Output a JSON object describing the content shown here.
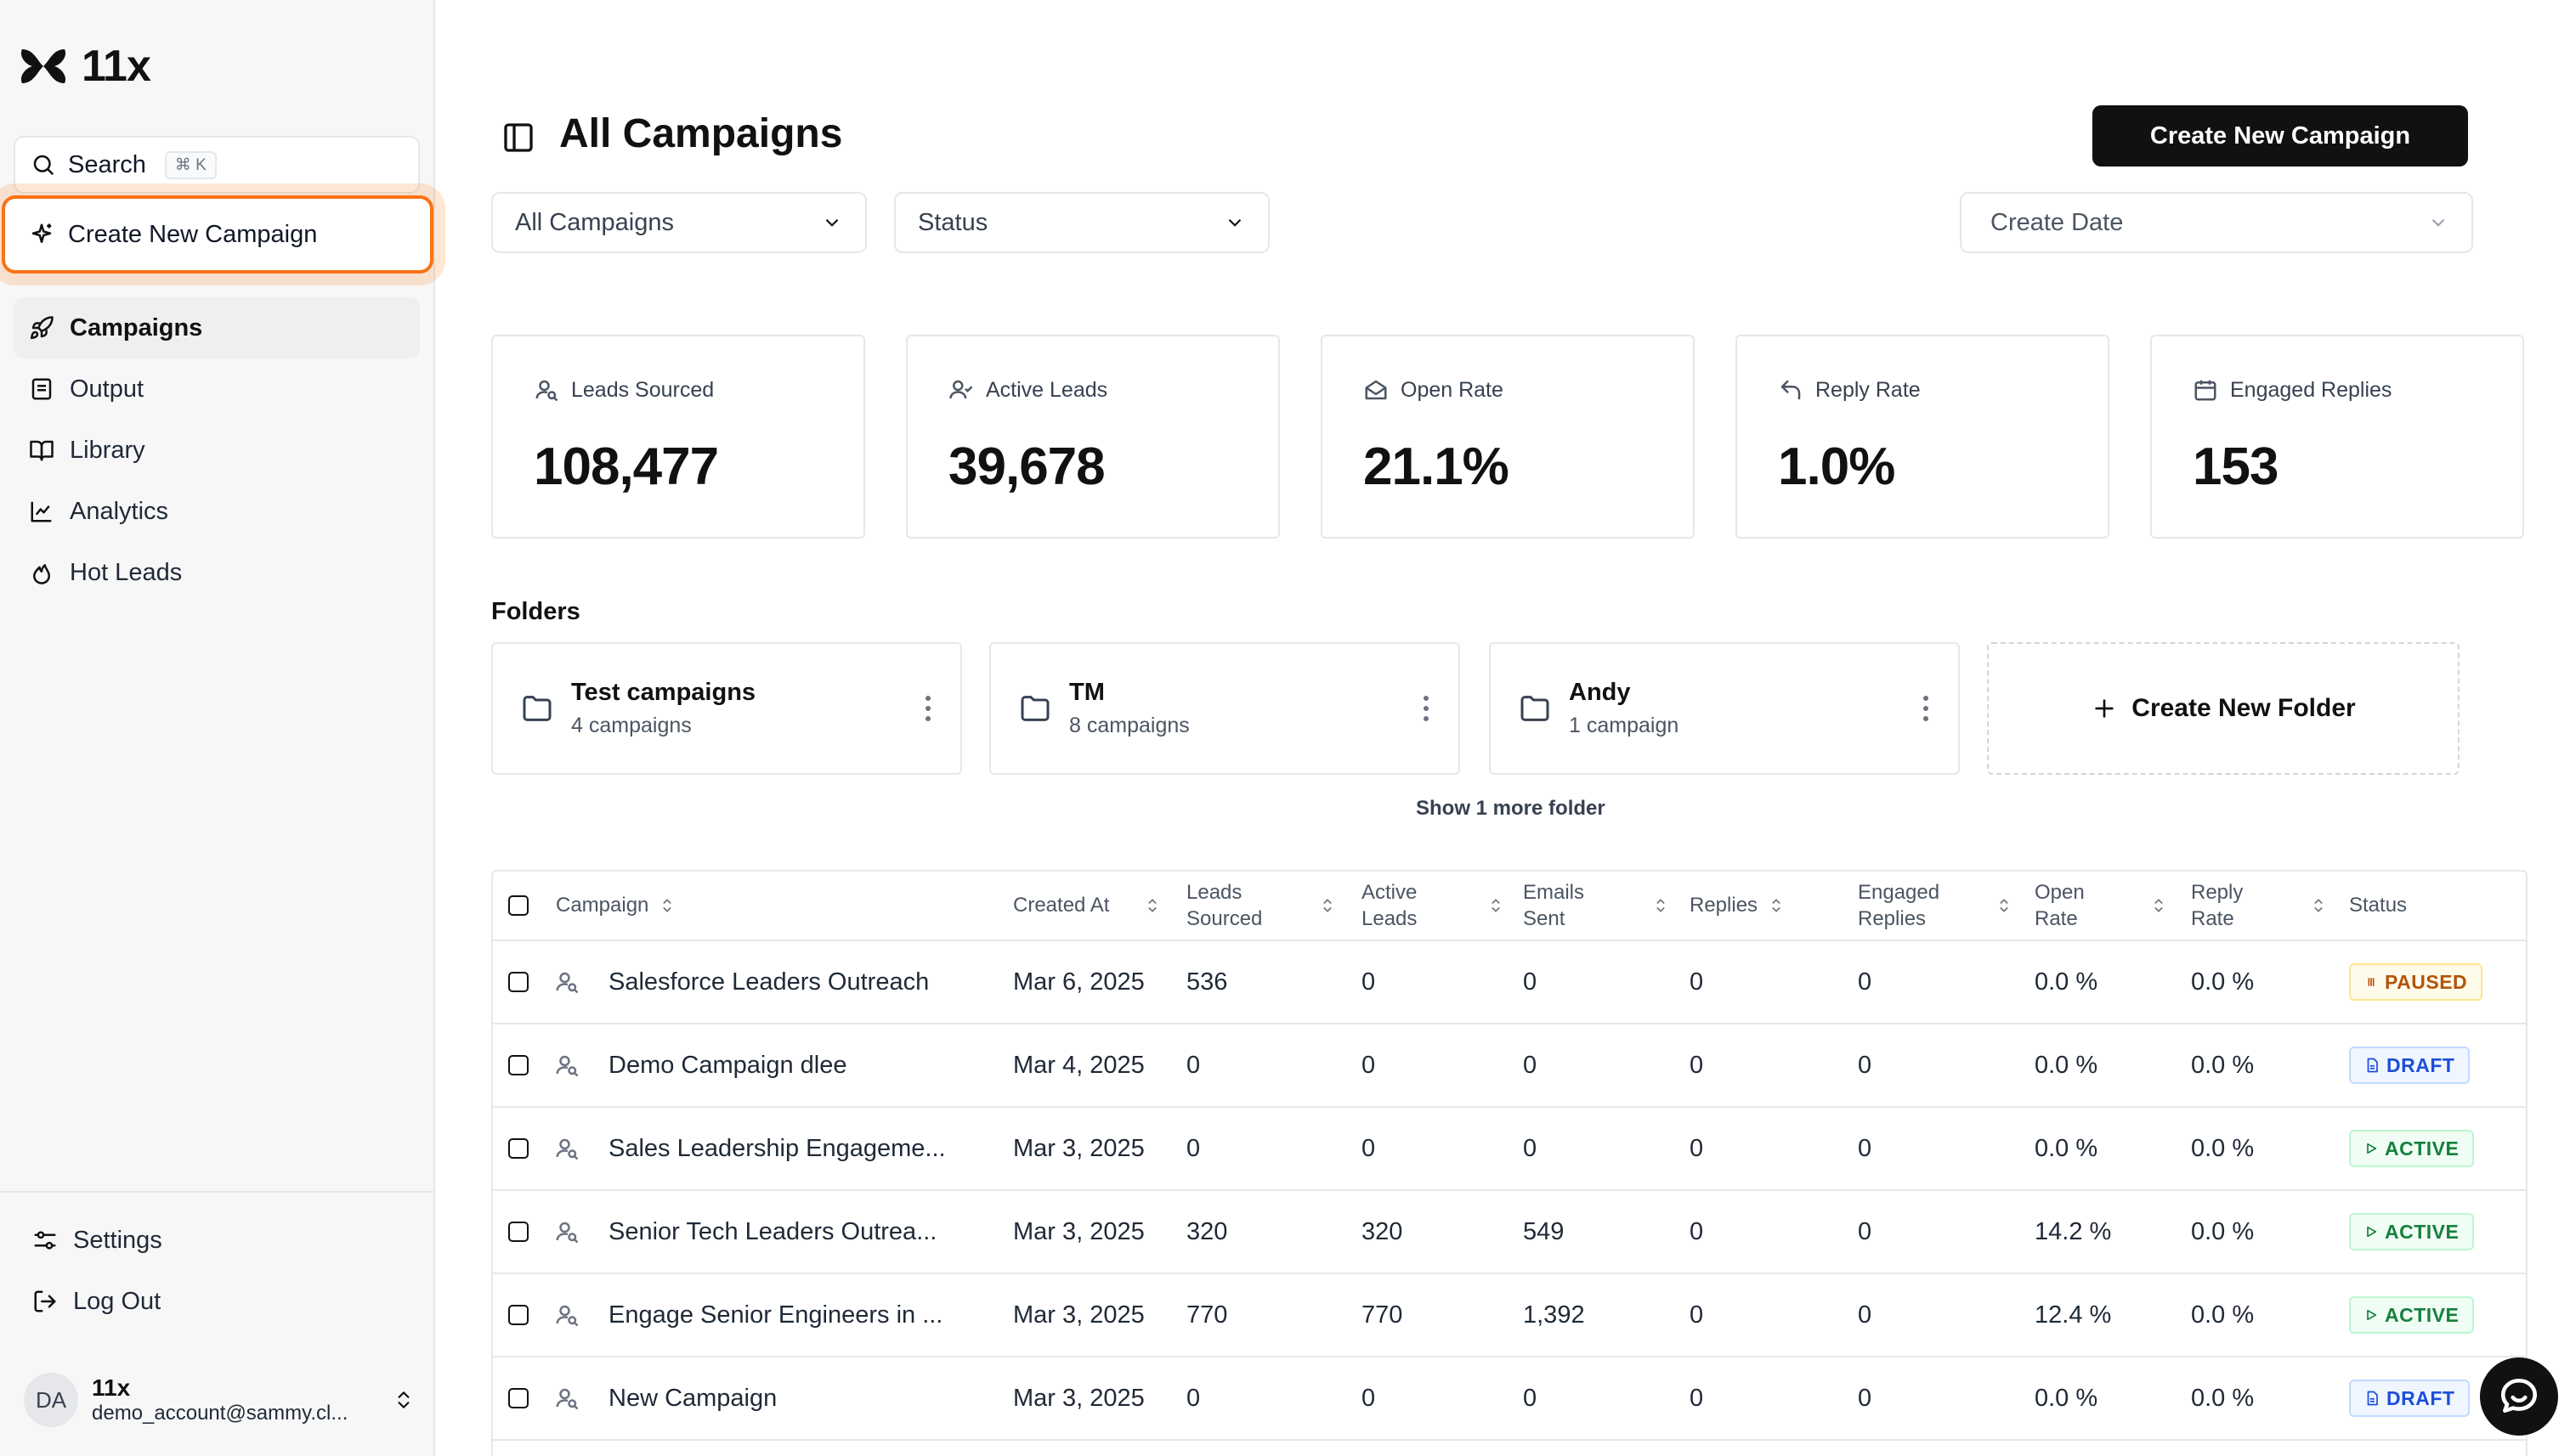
{
  "app": {
    "logo_text": "11x"
  },
  "sidebar": {
    "search_label": "Search",
    "search_shortcut": "⌘ K",
    "create_label": "Create New Campaign",
    "nav": [
      {
        "label": "Campaigns",
        "icon": "rocket-icon"
      },
      {
        "label": "Output",
        "icon": "output-icon"
      },
      {
        "label": "Library",
        "icon": "book-icon"
      },
      {
        "label": "Analytics",
        "icon": "chart-icon"
      },
      {
        "label": "Hot Leads",
        "icon": "flame-icon"
      }
    ],
    "bottom": [
      {
        "label": "Settings",
        "icon": "settings-icon"
      },
      {
        "label": "Log Out",
        "icon": "logout-icon"
      }
    ],
    "user": {
      "initials": "DA",
      "name": "11x",
      "email": "demo_account@sammy.cl..."
    }
  },
  "header": {
    "title": "All Campaigns",
    "create_button": "Create New Campaign",
    "filter_campaigns": "All Campaigns",
    "filter_status": "Status",
    "filter_date": "Create Date"
  },
  "stats": [
    {
      "label": "Leads Sourced",
      "value": "108,477",
      "icon": "user-search-icon"
    },
    {
      "label": "Active Leads",
      "value": "39,678",
      "icon": "user-check-icon"
    },
    {
      "label": "Open Rate",
      "value": "21.1%",
      "icon": "mail-open-icon"
    },
    {
      "label": "Reply Rate",
      "value": "1.0%",
      "icon": "reply-icon"
    },
    {
      "label": "Engaged Replies",
      "value": "153",
      "icon": "calendar-icon"
    }
  ],
  "folders": {
    "title": "Folders",
    "items": [
      {
        "name": "Test campaigns",
        "count": "4 campaigns"
      },
      {
        "name": "TM",
        "count": "8 campaigns"
      },
      {
        "name": "Andy",
        "count": "1 campaign"
      }
    ],
    "new_label": "Create New Folder",
    "more_label": "Show 1 more folder"
  },
  "table": {
    "columns": {
      "campaign": "Campaign",
      "created": "Created At",
      "leads_1": "Leads",
      "leads_2": "Sourced",
      "active_1": "Active",
      "active_2": "Leads",
      "emails_1": "Emails",
      "emails_2": "Sent",
      "replies": "Replies",
      "engaged_1": "Engaged",
      "engaged_2": "Replies",
      "open_1": "Open",
      "open_2": "Rate",
      "reply_1": "Reply",
      "reply_2": "Rate",
      "status": "Status"
    },
    "rows": [
      {
        "name": "Salesforce Leaders Outreach",
        "created": "Mar 6, 2025",
        "leads": "536",
        "active": "0",
        "emails": "0",
        "replies": "0",
        "engaged": "0",
        "open_rate": "0.0 %",
        "reply_rate": "0.0 %",
        "status": "PAUSED",
        "status_kind": "paused"
      },
      {
        "name": "Demo Campaign dlee",
        "created": "Mar 4, 2025",
        "leads": "0",
        "active": "0",
        "emails": "0",
        "replies": "0",
        "engaged": "0",
        "open_rate": "0.0 %",
        "reply_rate": "0.0 %",
        "status": "DRAFT",
        "status_kind": "draft"
      },
      {
        "name": "Sales Leadership Engageme...",
        "created": "Mar 3, 2025",
        "leads": "0",
        "active": "0",
        "emails": "0",
        "replies": "0",
        "engaged": "0",
        "open_rate": "0.0 %",
        "reply_rate": "0.0 %",
        "status": "ACTIVE",
        "status_kind": "active"
      },
      {
        "name": "Senior Tech Leaders Outrea...",
        "created": "Mar 3, 2025",
        "leads": "320",
        "active": "320",
        "emails": "549",
        "replies": "0",
        "engaged": "0",
        "open_rate": "14.2 %",
        "reply_rate": "0.0 %",
        "status": "ACTIVE",
        "status_kind": "active"
      },
      {
        "name": "Engage Senior Engineers in ...",
        "created": "Mar 3, 2025",
        "leads": "770",
        "active": "770",
        "emails": "1,392",
        "replies": "0",
        "engaged": "0",
        "open_rate": "12.4 %",
        "reply_rate": "0.0 %",
        "status": "ACTIVE",
        "status_kind": "active"
      },
      {
        "name": "New Campaign",
        "created": "Mar 3, 2025",
        "leads": "0",
        "active": "0",
        "emails": "0",
        "replies": "0",
        "engaged": "0",
        "open_rate": "0.0 %",
        "reply_rate": "0.0 %",
        "status": "DRAFT",
        "status_kind": "draft"
      }
    ]
  }
}
